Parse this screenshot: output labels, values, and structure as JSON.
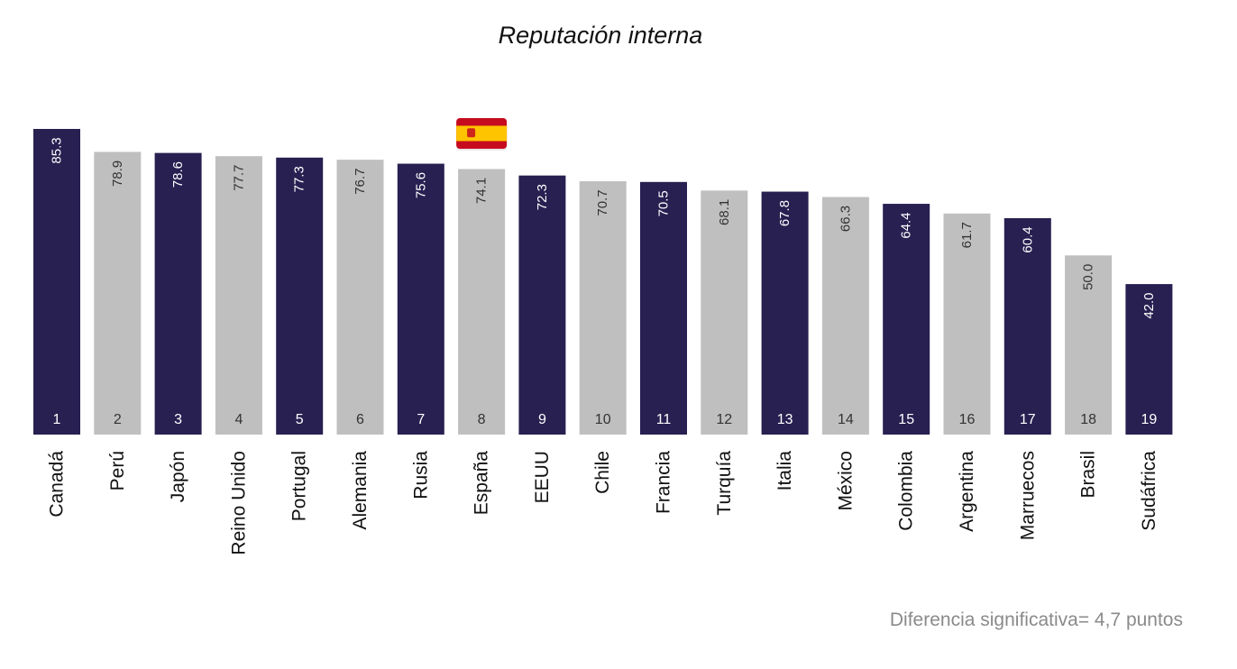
{
  "chart_data": {
    "type": "bar",
    "title": "Reputación interna",
    "footnote": "Diferencia significativa= 4,7 puntos",
    "categories": [
      "Canadá",
      "Perú",
      "Japón",
      "Reino Unido",
      "Portugal",
      "Alemania",
      "Rusia",
      "España",
      "EEUU",
      "Chile",
      "Francia",
      "Turquía",
      "Italia",
      "México",
      "Colombia",
      "Argentina",
      "Marruecos",
      "Brasil",
      "Sudáfrica"
    ],
    "values": [
      85.3,
      78.9,
      78.6,
      77.7,
      77.3,
      76.7,
      75.6,
      74.1,
      72.3,
      70.7,
      70.5,
      68.1,
      67.8,
      66.3,
      64.4,
      61.7,
      60.4,
      50.0,
      42.0
    ],
    "value_labels": [
      "85.3",
      "78.9",
      "78.6",
      "77.7",
      "77.3",
      "76.7",
      "75.6",
      "74.1",
      "72.3",
      "70.7",
      "70.5",
      "68.1",
      "67.8",
      "66.3",
      "64.4",
      "61.7",
      "60.4",
      "50.0",
      "42.0"
    ],
    "ranks": [
      "1",
      "2",
      "3",
      "4",
      "5",
      "6",
      "7",
      "8",
      "9",
      "10",
      "11",
      "12",
      "13",
      "14",
      "15",
      "16",
      "17",
      "18",
      "19"
    ],
    "bar_colors": [
      "#272051",
      "#bfbfbf",
      "#272051",
      "#bfbfbf",
      "#272051",
      "#bfbfbf",
      "#272051",
      "#bfbfbf",
      "#272051",
      "#bfbfbf",
      "#272051",
      "#bfbfbf",
      "#272051",
      "#bfbfbf",
      "#272051",
      "#bfbfbf",
      "#272051",
      "#bfbfbf",
      "#272051"
    ],
    "highlight_category": "España",
    "highlight_icon": "spain-flag-icon",
    "ylim": [
      0,
      85.3
    ],
    "grid": false,
    "xlabel": "",
    "ylabel": ""
  },
  "colors": {
    "dark_bar": "#272051",
    "light_bar": "#bfbfbf",
    "flag_red": "#c60b1e",
    "flag_yellow": "#ffc400",
    "dark_label": "#ffffff",
    "light_label": "#333333"
  }
}
